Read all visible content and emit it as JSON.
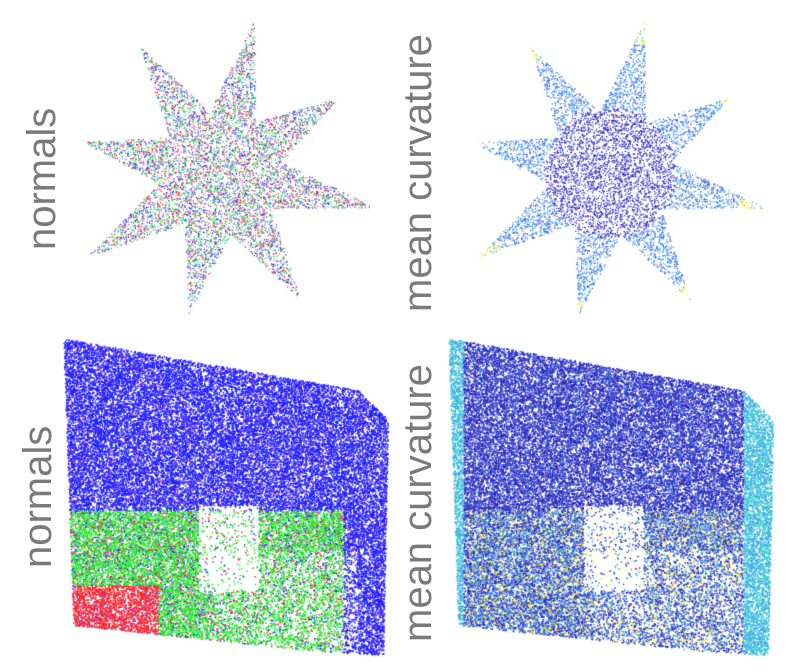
{
  "panels": [
    {
      "id": "star-normals",
      "label": "normals",
      "shape": "star",
      "coloring": "normals"
    },
    {
      "id": "star-curvature",
      "label": "mean curvature",
      "shape": "star",
      "coloring": "curvature"
    },
    {
      "id": "room-normals",
      "label": "normals",
      "shape": "room",
      "coloring": "normals"
    },
    {
      "id": "room-curvature",
      "label": "mean curvature",
      "shape": "room",
      "coloring": "curvature"
    }
  ],
  "colors": {
    "label": "#7a7a7a",
    "normals_palette": [
      "#1e1eff",
      "#22ee22",
      "#ff2222",
      "#a040c0",
      "#40c0c0"
    ],
    "curvature_palette": [
      "#2b1fb8",
      "#3a5bd8",
      "#3fa3ea",
      "#41d6d0",
      "#f5f02a"
    ]
  }
}
